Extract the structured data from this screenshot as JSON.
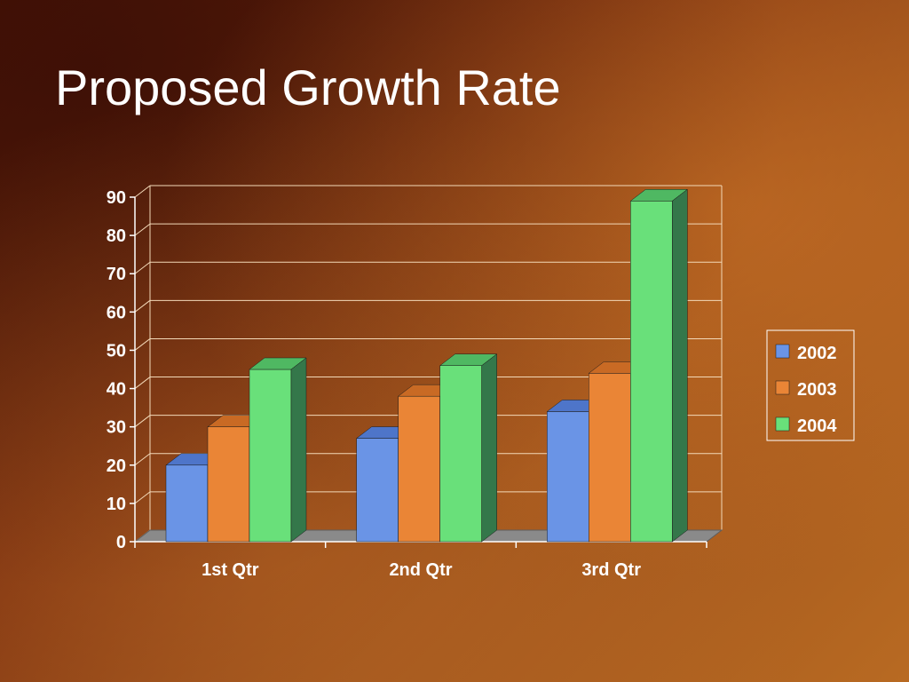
{
  "slide": {
    "title": "Proposed Growth Rate"
  },
  "chart_data": {
    "type": "bar",
    "title": "",
    "xlabel": "",
    "ylabel": "",
    "categories": [
      "1st Qtr",
      "2nd Qtr",
      "3rd Qtr"
    ],
    "series": [
      {
        "name": "2002",
        "values": [
          20,
          27,
          34
        ],
        "color": "#6a94e6",
        "top": "#4e75c9",
        "side": "#3e5ea6"
      },
      {
        "name": "2003",
        "values": [
          30,
          38,
          44
        ],
        "color": "#ea8536",
        "top": "#c96a24",
        "side": "#a5521a"
      },
      {
        "name": "2004",
        "values": [
          45,
          46,
          89
        ],
        "color": "#69e07a",
        "top": "#4fb862",
        "side": "#34774a"
      }
    ],
    "ylim": [
      0,
      90
    ],
    "yticks": [
      "0",
      "10",
      "20",
      "30",
      "40",
      "50",
      "60",
      "70",
      "80",
      "90"
    ],
    "grid": true,
    "legend": "right",
    "style": "3d-clustered-column"
  }
}
